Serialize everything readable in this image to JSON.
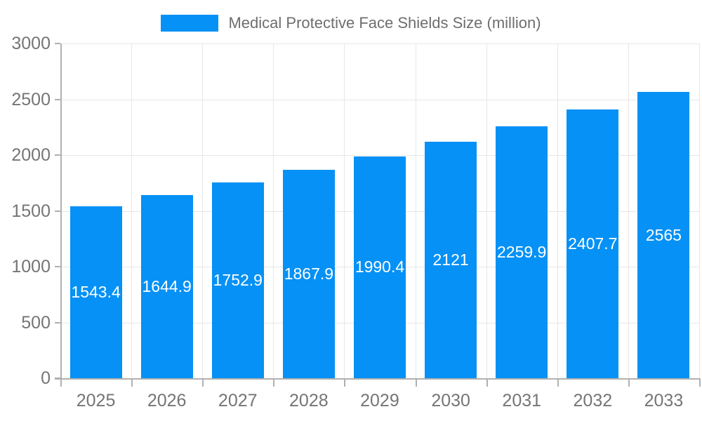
{
  "legend": {
    "label": "Medical Protective Face Shields Size (million)"
  },
  "chart_data": {
    "type": "bar",
    "title": "Medical Protective Face Shields Size (million)",
    "categories": [
      "2025",
      "2026",
      "2027",
      "2028",
      "2029",
      "2030",
      "2031",
      "2032",
      "2033"
    ],
    "values": [
      1543.4,
      1644.9,
      1752.9,
      1867.9,
      1990.4,
      2121,
      2259.9,
      2407.7,
      2565
    ],
    "value_labels": [
      "1543.4",
      "1644.9",
      "1752.9",
      "1867.9",
      "1990.4",
      "2121",
      "2259.9",
      "2407.7",
      "2565"
    ],
    "xlabel": "",
    "ylabel": "",
    "ylim": [
      0,
      3000
    ],
    "yticks": [
      0,
      500,
      1000,
      1500,
      2000,
      2500,
      3000
    ],
    "ytick_labels": [
      "0",
      "500",
      "1000",
      "1500",
      "2000",
      "2500",
      "3000"
    ],
    "grid": "horizontal and vertical gridlines on",
    "legend_position": "top-center",
    "colors": {
      "bar": "#0591f5",
      "value_text": "#ffffff",
      "tick_text": "#757575",
      "legend_text": "#6e6e6e",
      "grid": "#e7e7e7",
      "axis": "#b0b0b0",
      "background": "#ffffff"
    }
  }
}
